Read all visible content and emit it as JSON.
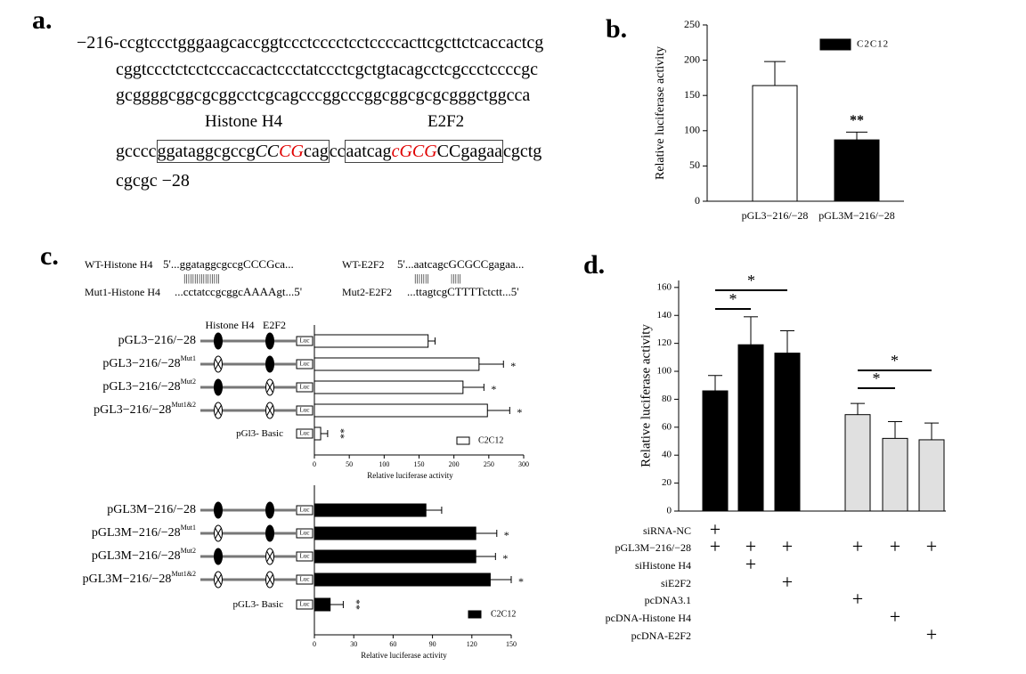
{
  "panel_a": {
    "label": "a.",
    "start": "−216-",
    "line1": "ccgtccctgggaagcaccggtccctcccctcctccccacttcgcttctcaccactcg",
    "line2": "cggtccctctcctcccaccactccctatccctcgctgtacagcctcgccctccccgc",
    "line3": "gcggggcggcgcggcctcgcagcccggcccggcggcgcgcgggctggcca",
    "site1": "Histone H4",
    "site2": "E2F2",
    "line4": [
      "gcccc",
      "ggataggcgccg",
      "CC",
      "CG",
      "cag",
      "cc",
      "aatcag",
      "cGCG",
      "CCgagaa",
      "cgctg"
    ],
    "line5": "cgcgc",
    "end": "−28"
  },
  "panel_c": {
    "label": "c.",
    "wt1_name": "WT-Histone H4",
    "wt1_seq": "5'...ggataggcgccgCCCGca...",
    "pair1": "|||||||||||||||||",
    "mut1_name": "Mut1-Histone H4",
    "mut1_seq": "...cctatccgcggcAAAAgt...5'",
    "wt2_name": "WT-E2F2",
    "wt2_seq": "5'...aatcagcGCGCCgagaa...",
    "pair2": "|||||||        |||||",
    "mut2_name": "Mut2-E2F2",
    "mut2_seq": "...ttagtcgCTTTTctctt...5'",
    "site1": "Histone H4",
    "site2": "E2F2",
    "reporter": "Luc"
  },
  "chart_data": [
    {
      "type": "bar",
      "label": "b.",
      "ylabel": "Relative luciferase activity",
      "categories": [
        "pGL3−216/−28",
        "pGL3M−216/−28"
      ],
      "values": [
        164,
        87
      ],
      "errors": [
        34,
        11
      ],
      "colors": [
        "#ffffff",
        "#000000"
      ],
      "ylim": [
        0,
        250
      ],
      "yticks": [
        0,
        50,
        100,
        150,
        200,
        250
      ],
      "annotations": [
        null,
        "**"
      ],
      "legend": "C2C12",
      "legend_color": "#000000"
    },
    {
      "type": "barh",
      "categories": [
        "pGL3−216/−28",
        "pGL3−216/−28",
        "pGL3−216/−28",
        "pGL3−216/−28",
        "pGl3- Basic"
      ],
      "category_superscripts": [
        null,
        "Mut1",
        "Mut2",
        "Mut1&2",
        null
      ],
      "site_mutated": [
        [
          false,
          false
        ],
        [
          true,
          false
        ],
        [
          false,
          true
        ],
        [
          true,
          true
        ],
        null
      ],
      "values": [
        163,
        236,
        213,
        248,
        9
      ],
      "errors": [
        10,
        35,
        30,
        32,
        10
      ],
      "color": "#ffffff",
      "xlim": [
        0,
        300
      ],
      "xticks": [
        0,
        50,
        100,
        150,
        200,
        250,
        300
      ],
      "xlabel": "Relative luciferase activity",
      "annotations": [
        null,
        "*",
        "*",
        "*",
        "**"
      ],
      "legend": "C2C12",
      "legend_color": "#ffffff"
    },
    {
      "type": "barh",
      "categories": [
        "pGL3M−216/−28",
        "pGL3M−216/−28",
        "pGL3M−216/−28",
        "pGL3M−216/−28",
        "pGL3- Basic"
      ],
      "category_superscripts": [
        null,
        "Mut1",
        "Mut2",
        "Mut1&2",
        null
      ],
      "site_mutated": [
        [
          false,
          false
        ],
        [
          true,
          false
        ],
        [
          false,
          true
        ],
        [
          true,
          true
        ],
        null
      ],
      "values": [
        85,
        123,
        123,
        134,
        12
      ],
      "errors": [
        12,
        16,
        15,
        16,
        10
      ],
      "color": "#000000",
      "xlim": [
        0,
        150
      ],
      "xticks": [
        0,
        30,
        60,
        90,
        120,
        150
      ],
      "xlabel": "Relative luciferase activity",
      "annotations": [
        null,
        "*",
        "*",
        "*",
        "**"
      ],
      "legend": "C2C12",
      "legend_color": "#000000"
    },
    {
      "type": "bar",
      "label": "d.",
      "ylabel": "Relative luciferase activity",
      "categories": [
        null,
        null,
        null,
        null,
        null,
        null
      ],
      "values": [
        86,
        119,
        113,
        69,
        52,
        51
      ],
      "errors": [
        11,
        20,
        16,
        8,
        12,
        12
      ],
      "colors": [
        "#000000",
        "#000000",
        "#000000",
        "#e0e0e0",
        "#e0e0e0",
        "#e0e0e0"
      ],
      "ylim": [
        0,
        165
      ],
      "yticks": [
        0,
        20,
        40,
        60,
        80,
        100,
        120,
        140,
        160
      ],
      "comparisons": [
        {
          "pair": [
            0,
            1
          ],
          "label": "*"
        },
        {
          "pair": [
            0,
            2
          ],
          "label": "*"
        },
        {
          "pair": [
            3,
            4
          ],
          "label": "*"
        },
        {
          "pair": [
            3,
            5
          ],
          "label": "*"
        }
      ],
      "condition_mark": "+",
      "conditions": [
        {
          "label": "siRNA-NC",
          "present": [
            true,
            false,
            false,
            false,
            false,
            false
          ]
        },
        {
          "label": "pGL3M−216/−28",
          "present": [
            true,
            true,
            true,
            true,
            true,
            true
          ]
        },
        {
          "label": "siHistone H4",
          "present": [
            false,
            true,
            false,
            false,
            false,
            false
          ]
        },
        {
          "label": "siE2F2",
          "present": [
            false,
            false,
            true,
            false,
            false,
            false
          ]
        },
        {
          "label": "pcDNA3.1",
          "present": [
            false,
            false,
            false,
            true,
            false,
            false
          ]
        },
        {
          "label": "pcDNA-Histone H4",
          "present": [
            false,
            false,
            false,
            false,
            true,
            false
          ]
        },
        {
          "label": "pcDNA-E2F2",
          "present": [
            false,
            false,
            false,
            false,
            false,
            true
          ]
        }
      ]
    }
  ]
}
